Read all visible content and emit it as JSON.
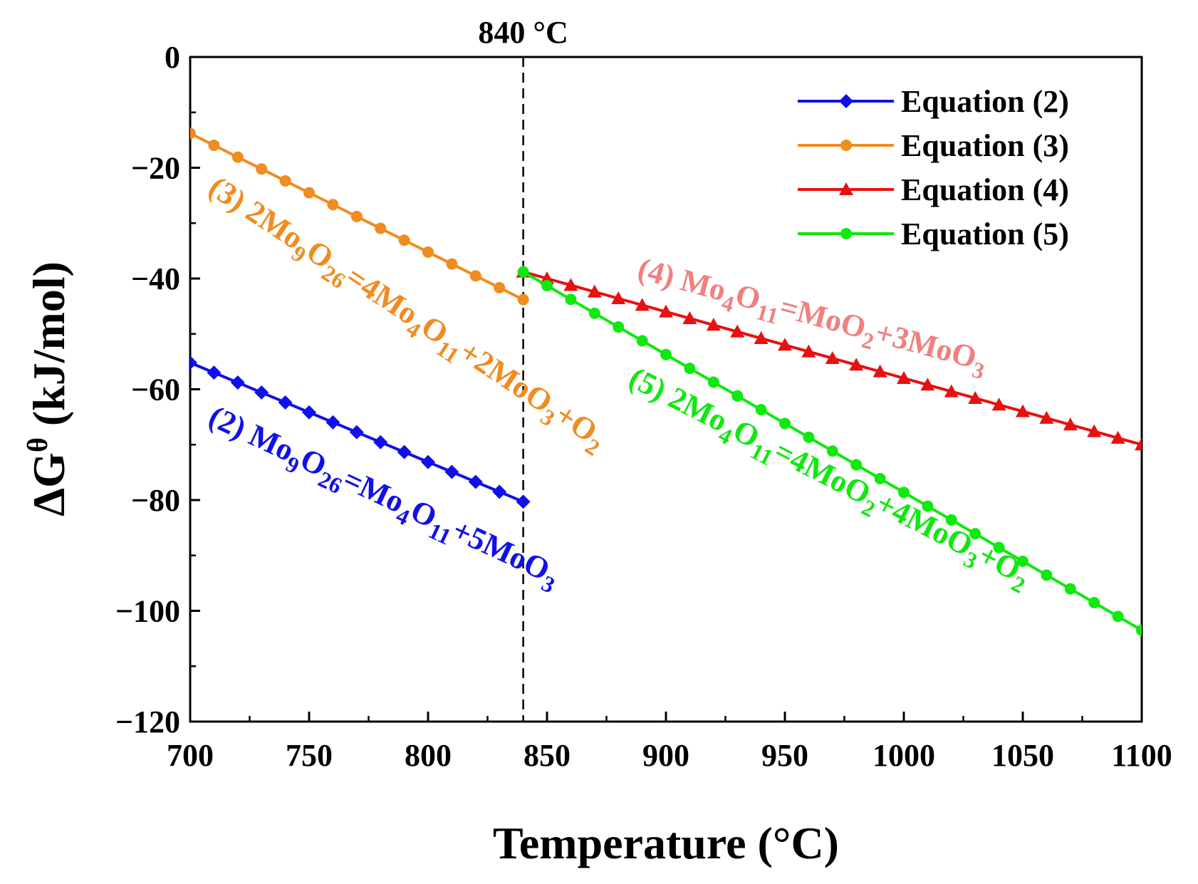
{
  "chart_data": {
    "type": "line",
    "xlabel": "Temperature (°C)",
    "ylabel_prefix": "ΔG",
    "ylabel_sup": "θ",
    "ylabel_suffix": " (kJ/mol)",
    "xlim": [
      700,
      1100
    ],
    "ylim": [
      -120,
      0
    ],
    "xticks": [
      700,
      750,
      800,
      850,
      900,
      950,
      1000,
      1050,
      1100
    ],
    "yticks": [
      0,
      -20,
      -40,
      -60,
      -80,
      -100,
      -120
    ],
    "xtick_labels": [
      "700",
      "750",
      "800",
      "850",
      "900",
      "950",
      "1000",
      "1050",
      "1100"
    ],
    "ytick_labels": [
      "0",
      "−20",
      "−40",
      "−60",
      "−80",
      "−100",
      "−120"
    ],
    "vline": {
      "x": 840,
      "label": "840 °C"
    },
    "legend_position": "top-right",
    "series": [
      {
        "name": "Equation (2)",
        "color": "#1010e8",
        "marker": "diamond",
        "x_start": 700,
        "x_end": 840,
        "x_step": 10,
        "y_start": -55.2,
        "y_end": -80.3
      },
      {
        "name": "Equation (3)",
        "color": "#f08c20",
        "marker": "circle",
        "x_start": 700,
        "x_end": 840,
        "x_step": 10,
        "y_start": -13.8,
        "y_end": -43.8
      },
      {
        "name": "Equation (4)",
        "color": "#e81010",
        "marker": "triangle",
        "x_start": 840,
        "x_end": 1100,
        "x_step": 10,
        "y_start": -38.8,
        "y_end": -70.0
      },
      {
        "name": "Equation (5)",
        "color": "#10e810",
        "marker": "circle",
        "x_start": 840,
        "x_end": 1100,
        "x_step": 10,
        "y_start": -38.8,
        "y_end": -103.5
      }
    ],
    "annotations": [
      {
        "id": "eq3",
        "color": "#f08c20",
        "parts": [
          "(3) 2Mo",
          "9",
          "O",
          "26",
          "=4Mo",
          "4",
          "O",
          "11",
          "+2MoO",
          "3",
          "+O",
          "2"
        ]
      },
      {
        "id": "eq2",
        "color": "#1010e8",
        "parts": [
          "(2) Mo",
          "9",
          "O",
          "26",
          "=Mo",
          "4",
          "O",
          "11",
          "+5MoO",
          "3"
        ]
      },
      {
        "id": "eq4",
        "color": "#f08080",
        "parts": [
          "(4) Mo",
          "4",
          "O",
          "11",
          "=MoO",
          "2",
          "+3MoO",
          "3"
        ]
      },
      {
        "id": "eq5",
        "color": "#10e810",
        "parts": [
          "(5) 2Mo",
          "4",
          "O",
          "11",
          "=4MoO",
          "2",
          "+4MoO",
          "3",
          "+O",
          "2"
        ]
      }
    ]
  }
}
